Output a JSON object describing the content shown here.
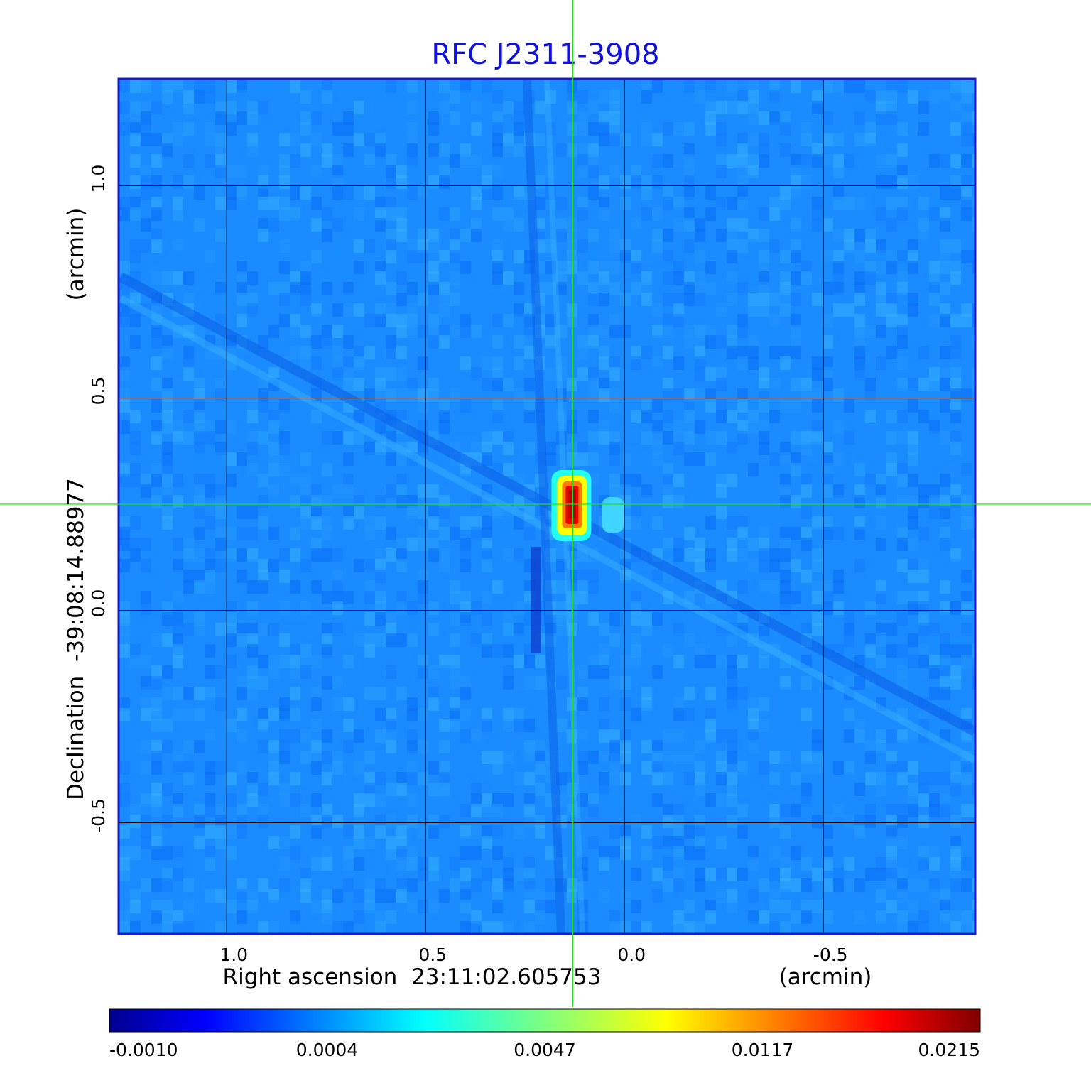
{
  "chart_data": {
    "type": "heatmap",
    "title": "RFC J2311-3908",
    "xlabel": "Right ascension  23:11:02.605753",
    "xunit": "(arcmin)",
    "ylabel_main": "Declination  -39:08:14.88977",
    "yunit": "(arcmin)",
    "x_range": [
      1.27,
      -0.88
    ],
    "y_range": [
      -0.76,
      1.25
    ],
    "x_ticks": [
      1.0,
      0.5,
      0.0,
      -0.5
    ],
    "x_tick_labels": [
      "1.0",
      "0.5",
      "0.0",
      "-0.5"
    ],
    "y_ticks": [
      1.0,
      0.5,
      0.0,
      -0.5
    ],
    "y_tick_labels": [
      "1.0",
      "0.5",
      "0.0",
      "-0.5"
    ],
    "grid": true,
    "crosshair": {
      "x": 0.13,
      "y": 0.25
    },
    "source_peak": {
      "x": 0.13,
      "y": 0.25,
      "value": 0.0215
    },
    "colorbar": {
      "min": -0.001,
      "max": 0.0215,
      "scale": "nonlinear",
      "tick_labels": [
        "-0.0010",
        "0.0004",
        "0.0047",
        "0.0117",
        "0.0215"
      ],
      "colormap": "jet"
    },
    "colors": {
      "title": "#1010e0",
      "frame": "#1a1acc",
      "grid": "#000000",
      "crosshair": "#22dd22"
    }
  }
}
